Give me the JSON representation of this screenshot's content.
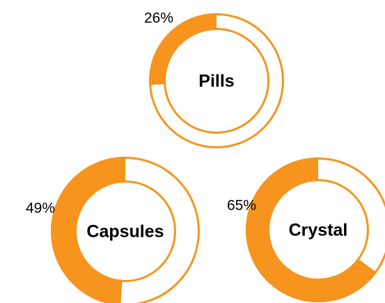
{
  "chart_data": [
    {
      "type": "donut",
      "title": "Pills",
      "values": [
        26
      ],
      "value_labels": [
        "26%"
      ],
      "color": "#f7941d"
    },
    {
      "type": "donut",
      "title": "Capsules",
      "values": [
        49
      ],
      "value_labels": [
        "49%"
      ],
      "color": "#f7941d"
    },
    {
      "type": "donut",
      "title": "Crystal",
      "values": [
        65
      ],
      "value_labels": [
        "65%"
      ],
      "color": "#f7941d"
    }
  ]
}
